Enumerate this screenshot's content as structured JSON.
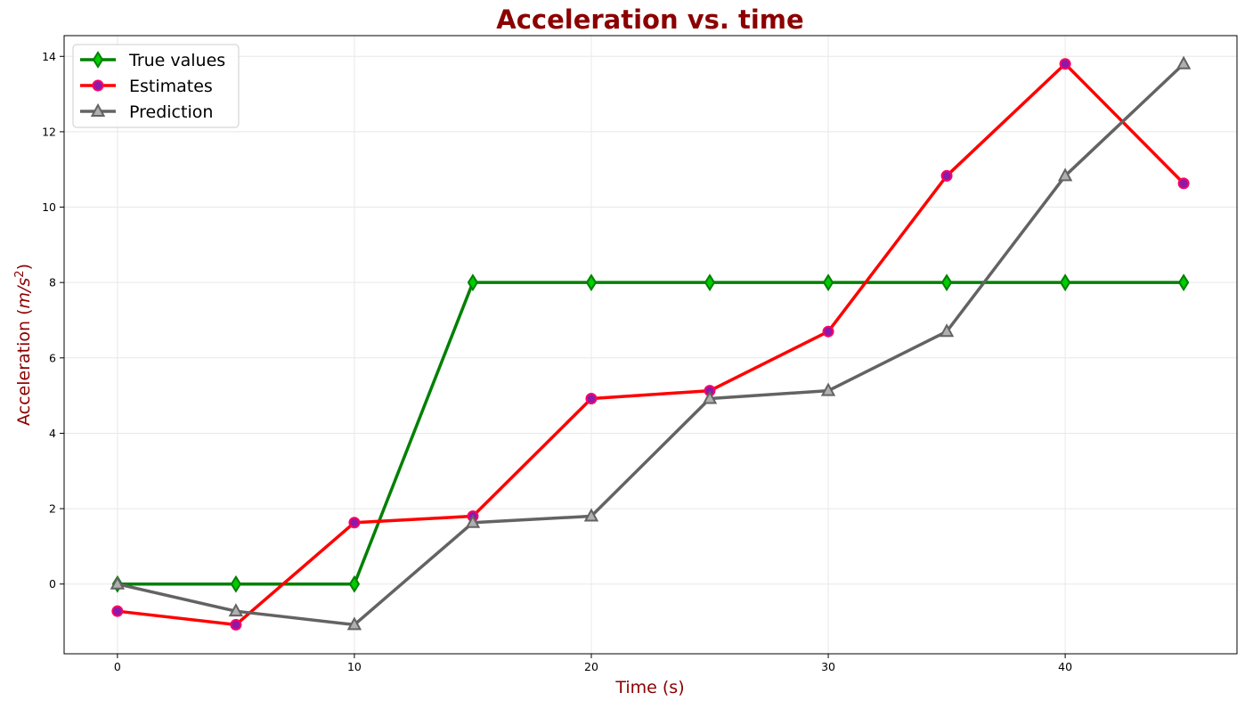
{
  "chart_data": {
    "type": "line",
    "title": "Acceleration vs. time",
    "xlabel": "Time (s)",
    "ylabel_base": "Acceleration (",
    "ylabel_unit": "m/s",
    "ylabel_exp": "2",
    "ylabel_close": ")",
    "x": [
      0,
      5,
      10,
      15,
      20,
      25,
      30,
      35,
      40,
      45
    ],
    "xlim": [
      -2.25,
      47.25
    ],
    "ylim": [
      -1.85,
      14.55
    ],
    "xticks": [
      0,
      10,
      20,
      30,
      40
    ],
    "yticks": [
      0,
      2,
      4,
      6,
      8,
      10,
      12,
      14
    ],
    "grid": true,
    "legend_position": "upper-left",
    "series": [
      {
        "name": "True values",
        "color": "#008000",
        "marker": "diamond",
        "marker_face": "#00cc00",
        "marker_edge": "#008000",
        "values": [
          0,
          0,
          0,
          8,
          8,
          8,
          8,
          8,
          8,
          8
        ]
      },
      {
        "name": "Estimates",
        "color": "#ff0000",
        "marker": "circle",
        "marker_face": "#8c1aa8",
        "marker_edge": "#ff0066",
        "values": [
          -0.72,
          -1.08,
          1.63,
          1.8,
          4.92,
          5.13,
          6.7,
          10.83,
          13.8,
          10.63
        ]
      },
      {
        "name": "Prediction",
        "color": "#636363",
        "marker": "triangle",
        "marker_face": "#b0b0b0",
        "marker_edge": "#636363",
        "values": [
          0,
          -0.72,
          -1.08,
          1.63,
          1.8,
          4.92,
          5.13,
          6.7,
          10.83,
          13.8
        ]
      }
    ],
    "colors": {
      "title": "#8b0000",
      "axis_label": "#8b0000",
      "grid": "#e8e8e8",
      "axes": "#000000"
    }
  }
}
